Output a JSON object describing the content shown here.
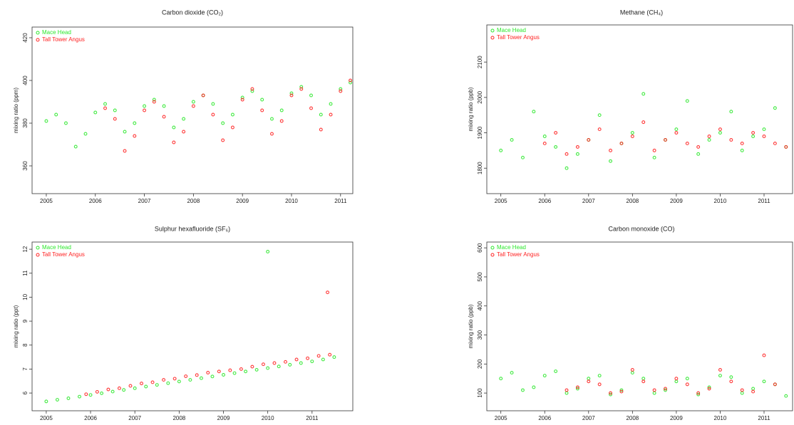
{
  "chart_data": [
    {
      "type": "scatter",
      "title": "Carbon dioxide (CO₂)",
      "y_label": "mixing ratio (ppm)",
      "xlim": [
        2004.71,
        2011.25
      ],
      "xticks": [
        2005,
        2006,
        2007,
        2008,
        2009,
        2010,
        2011
      ],
      "ylim": [
        347,
        425
      ],
      "yticks": [
        360,
        380,
        400,
        420
      ],
      "legend": "top-left",
      "series": [
        {
          "name": "Mace Head",
          "color": "#2ee82e",
          "x": [
            2005.0,
            2005.2,
            2005.4,
            2005.6,
            2005.8,
            2006.0,
            2006.2,
            2006.4,
            2006.6,
            2006.8,
            2007.0,
            2007.2,
            2007.4,
            2007.6,
            2007.8,
            2008.0,
            2008.2,
            2008.4,
            2008.6,
            2008.8,
            2009.0,
            2009.2,
            2009.4,
            2009.6,
            2009.8,
            2010.0,
            2010.2,
            2010.4,
            2010.6,
            2010.8,
            2011.0,
            2011.2
          ],
          "values": [
            381,
            384,
            380,
            369,
            375,
            385,
            389,
            386,
            376,
            380,
            388,
            391,
            388,
            378,
            382,
            390,
            393,
            389,
            380,
            384,
            392,
            395,
            391,
            382,
            386,
            394,
            397,
            393,
            384,
            389,
            396,
            399
          ]
        },
        {
          "name": "Tall Tower Angus",
          "color": "#ff2222",
          "x": [
            2006.2,
            2006.4,
            2006.6,
            2006.8,
            2007.0,
            2007.2,
            2007.4,
            2007.6,
            2007.8,
            2008.0,
            2008.2,
            2008.4,
            2008.6,
            2008.8,
            2009.0,
            2009.2,
            2009.4,
            2009.6,
            2009.8,
            2010.0,
            2010.2,
            2010.4,
            2010.6,
            2010.8,
            2011.0,
            2011.2
          ],
          "values": [
            387,
            382,
            367,
            374,
            386,
            390,
            383,
            371,
            376,
            388,
            393,
            384,
            372,
            378,
            391,
            396,
            386,
            375,
            381,
            393,
            396,
            387,
            377,
            384,
            395,
            400
          ]
        }
      ]
    },
    {
      "type": "scatter",
      "title": "Methane (CH₄)",
      "y_label": "mixing ratio (ppb)",
      "xlim": [
        2004.68,
        2011.65
      ],
      "xticks": [
        2005,
        2006,
        2007,
        2008,
        2009,
        2010,
        2011
      ],
      "ylim": [
        1728,
        2205
      ],
      "yticks": [
        1800,
        1900,
        2000,
        2100
      ],
      "legend": "top-left",
      "series": [
        {
          "name": "Mace Head",
          "color": "#2ee82e",
          "x": [
            2005.0,
            2005.25,
            2005.5,
            2005.75,
            2006.0,
            2006.25,
            2006.5,
            2006.75,
            2007.0,
            2007.25,
            2007.5,
            2007.75,
            2008.0,
            2008.25,
            2008.5,
            2008.75,
            2009.0,
            2009.25,
            2009.5,
            2009.75,
            2010.0,
            2010.25,
            2010.5,
            2010.75,
            2011.0,
            2011.25,
            2011.5
          ],
          "values": [
            1850,
            1880,
            1830,
            1960,
            1890,
            1860,
            1800,
            1840,
            1880,
            1950,
            1820,
            1870,
            1900,
            2010,
            1830,
            1880,
            1910,
            1990,
            1840,
            1880,
            1900,
            1960,
            1850,
            1890,
            1910,
            1970,
            1860
          ]
        },
        {
          "name": "Tall Tower Angus",
          "color": "#ff2222",
          "x": [
            2006.0,
            2006.25,
            2006.5,
            2006.75,
            2007.0,
            2007.25,
            2007.5,
            2007.75,
            2008.0,
            2008.25,
            2008.5,
            2008.75,
            2009.0,
            2009.25,
            2009.5,
            2009.75,
            2010.0,
            2010.25,
            2010.5,
            2010.75,
            2011.0,
            2011.25,
            2011.5
          ],
          "values": [
            1870,
            1900,
            1840,
            1860,
            1880,
            1910,
            1850,
            1870,
            1890,
            1930,
            1850,
            1880,
            1900,
            1870,
            1860,
            1890,
            1910,
            1880,
            1870,
            1900,
            1890,
            1870,
            1860
          ]
        }
      ]
    },
    {
      "type": "scatter",
      "title": "Sulphur hexafluoride (SF₆)",
      "y_label": "mixing ratio (ppt)",
      "xlim": [
        2004.68,
        2011.92
      ],
      "xticks": [
        2005,
        2006,
        2007,
        2008,
        2009,
        2010,
        2011
      ],
      "ylim": [
        5.26,
        12.3
      ],
      "yticks": [
        6,
        7,
        8,
        9,
        10,
        11,
        12
      ],
      "legend": "top-left",
      "series": [
        {
          "name": "Mace Head",
          "color": "#2ee82e",
          "x": [
            2005.0,
            2005.25,
            2005.5,
            2005.75,
            2006.0,
            2006.25,
            2006.5,
            2006.75,
            2007.0,
            2007.25,
            2007.5,
            2007.75,
            2008.0,
            2008.25,
            2008.5,
            2008.75,
            2009.0,
            2009.25,
            2009.5,
            2009.75,
            2010.0,
            2010.25,
            2010.5,
            2010.75,
            2011.0,
            2011.25,
            2011.5,
            2010.0
          ],
          "values": [
            5.65,
            5.72,
            5.78,
            5.85,
            5.92,
            5.99,
            6.06,
            6.13,
            6.2,
            6.27,
            6.34,
            6.41,
            6.48,
            6.55,
            6.62,
            6.69,
            6.76,
            6.83,
            6.9,
            6.97,
            7.04,
            7.11,
            7.18,
            7.25,
            7.32,
            7.4,
            7.5,
            11.9
          ]
        },
        {
          "name": "Tall Tower Angus",
          "color": "#ff2222",
          "x": [
            2005.9,
            2006.15,
            2006.4,
            2006.65,
            2006.9,
            2007.15,
            2007.4,
            2007.65,
            2007.9,
            2008.15,
            2008.4,
            2008.65,
            2008.9,
            2009.15,
            2009.4,
            2009.65,
            2009.9,
            2010.15,
            2010.4,
            2010.65,
            2010.9,
            2011.15,
            2011.4,
            2011.35
          ],
          "values": [
            5.95,
            6.05,
            6.15,
            6.2,
            6.3,
            6.4,
            6.45,
            6.55,
            6.6,
            6.7,
            6.75,
            6.85,
            6.9,
            6.95,
            7.0,
            7.1,
            7.2,
            7.25,
            7.3,
            7.4,
            7.45,
            7.55,
            7.6,
            10.2
          ]
        }
      ]
    },
    {
      "type": "scatter",
      "title": "Carbon monoxide (CO)",
      "y_label": "mixing ratio (ppb)",
      "xlim": [
        2004.68,
        2011.65
      ],
      "xticks": [
        2005,
        2006,
        2007,
        2008,
        2009,
        2010,
        2011
      ],
      "ylim": [
        39,
        620
      ],
      "yticks": [
        100,
        200,
        300,
        400,
        500,
        600
      ],
      "legend": "top-left",
      "series": [
        {
          "name": "Mace Head",
          "color": "#2ee82e",
          "x": [
            2005.0,
            2005.25,
            2005.5,
            2005.75,
            2006.0,
            2006.25,
            2006.5,
            2006.75,
            2007.0,
            2007.25,
            2007.5,
            2007.75,
            2008.0,
            2008.25,
            2008.5,
            2008.75,
            2009.0,
            2009.25,
            2009.5,
            2009.75,
            2010.0,
            2010.25,
            2010.5,
            2010.75,
            2011.0,
            2011.25,
            2011.5
          ],
          "values": [
            150,
            170,
            110,
            120,
            160,
            175,
            100,
            115,
            150,
            160,
            95,
            110,
            170,
            150,
            100,
            110,
            140,
            150,
            95,
            120,
            160,
            155,
            100,
            115,
            140,
            130,
            90
          ]
        },
        {
          "name": "Tall Tower Angus",
          "color": "#ff2222",
          "x": [
            2006.5,
            2006.75,
            2007.0,
            2007.25,
            2007.5,
            2007.75,
            2008.0,
            2008.25,
            2008.5,
            2008.75,
            2009.0,
            2009.25,
            2009.5,
            2009.75,
            2010.0,
            2010.25,
            2010.5,
            2010.75,
            2011.0,
            2011.25
          ],
          "values": [
            110,
            120,
            140,
            130,
            100,
            105,
            180,
            140,
            110,
            115,
            150,
            130,
            100,
            115,
            180,
            140,
            110,
            105,
            230,
            130
          ]
        }
      ]
    }
  ]
}
